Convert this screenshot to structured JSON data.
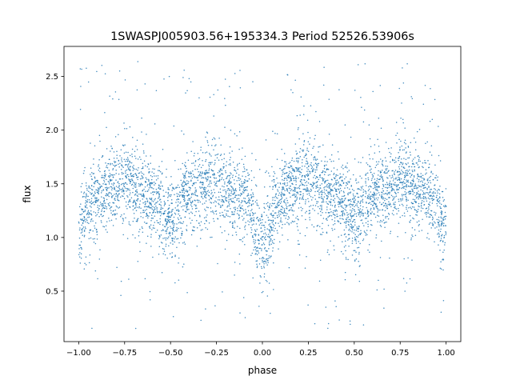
{
  "chart_data": {
    "type": "scatter",
    "title": "1SWASPJ005903.56+195334.3 Period 52526.53906s",
    "xlabel": "phase",
    "ylabel": "flux",
    "xlim": [
      -1.08,
      1.08
    ],
    "ylim": [
      0.03,
      2.78
    ],
    "xticks": [
      -1.0,
      -0.75,
      -0.5,
      -0.25,
      0.0,
      0.25,
      0.5,
      0.75,
      1.0
    ],
    "xtick_labels": [
      "−1.00",
      "−0.75",
      "−0.50",
      "−0.25",
      "0.00",
      "0.25",
      "0.50",
      "0.75",
      "1.00"
    ],
    "yticks": [
      0.5,
      1.0,
      1.5,
      2.0,
      2.5
    ],
    "ytick_labels": [
      "0.5",
      "1.0",
      "1.5",
      "2.0",
      "2.5"
    ],
    "grid": false,
    "legend": "none",
    "point_color": "#1f77b4",
    "light_curve_trend": {
      "x": [
        -1.0,
        -0.9,
        -0.75,
        -0.6,
        -0.5,
        -0.4,
        -0.25,
        -0.1,
        0.0,
        0.1,
        0.25,
        0.4,
        0.5,
        0.6,
        0.75,
        0.9,
        1.0
      ],
      "y": [
        1.1,
        1.42,
        1.52,
        1.38,
        1.18,
        1.4,
        1.52,
        1.38,
        0.9,
        1.38,
        1.52,
        1.4,
        1.18,
        1.38,
        1.52,
        1.42,
        1.1
      ]
    }
  }
}
